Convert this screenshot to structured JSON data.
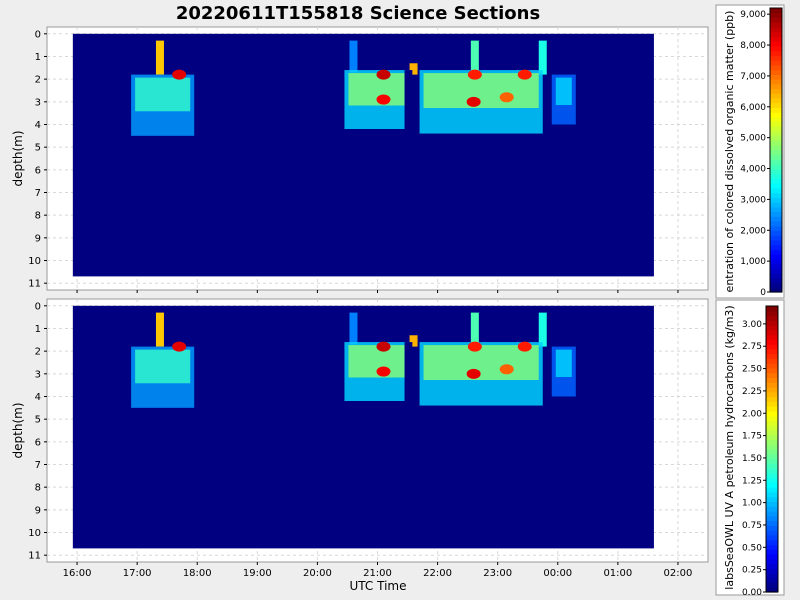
{
  "title": "20220611T155818 Science Sections",
  "xlabel": "UTC Time",
  "chart_data": [
    {
      "type": "heatmap",
      "panel": "top",
      "ylabel": "depth(m)",
      "colorbar_label": "entration of colored dissolved organic matter (ppb)",
      "colorbar_range": [
        0,
        9200
      ],
      "colorbar_ticks": [
        "0",
        "1,000",
        "2,000",
        "3,000",
        "4,000",
        "5,000",
        "6,000",
        "7,000",
        "8,000",
        "9,000"
      ],
      "colorbar_values": [
        0,
        1000,
        2000,
        3000,
        4000,
        5000,
        6000,
        7000,
        8000,
        9000
      ],
      "x_ticks": [
        "16:00",
        "17:00",
        "18:00",
        "19:00",
        "20:00",
        "21:00",
        "22:00",
        "23:00",
        "00:00",
        "01:00",
        "02:00"
      ],
      "y_ticks": [
        "0",
        "1",
        "2",
        "3",
        "4",
        "5",
        "6",
        "7",
        "8",
        "9",
        "10",
        "11"
      ],
      "xlim_hours": [
        15.5,
        26.5
      ],
      "ylim": [
        11.3,
        -0.3
      ],
      "data_extent_hours": [
        15.93,
        25.6
      ],
      "data_extent_depth": [
        0,
        10.7
      ],
      "grid": true,
      "background_value": 0
    },
    {
      "type": "heatmap",
      "panel": "bottom",
      "ylabel": "depth(m)",
      "colorbar_label": "labsSeaOWL UV A petroleum hydrocarbons (kg/m3)",
      "colorbar_range": [
        0,
        3.2
      ],
      "colorbar_ticks": [
        "0.00",
        "0.25",
        "0.50",
        "0.75",
        "1.00",
        "1.25",
        "1.50",
        "1.75",
        "2.00",
        "2.25",
        "2.50",
        "2.75",
        "3.00"
      ],
      "colorbar_values": [
        0,
        0.25,
        0.5,
        0.75,
        1.0,
        1.25,
        1.5,
        1.75,
        2.0,
        2.25,
        2.5,
        2.75,
        3.0
      ],
      "x_ticks": [
        "16:00",
        "17:00",
        "18:00",
        "19:00",
        "20:00",
        "21:00",
        "22:00",
        "23:00",
        "00:00",
        "01:00",
        "02:00"
      ],
      "y_ticks": [
        "0",
        "1",
        "2",
        "3",
        "4",
        "5",
        "6",
        "7",
        "8",
        "9",
        "10",
        "11"
      ],
      "xlim_hours": [
        15.5,
        26.5
      ],
      "ylim": [
        11.3,
        -0.3
      ],
      "data_extent_hours": [
        15.93,
        25.6
      ],
      "data_extent_depth": [
        0,
        10.7
      ],
      "grid": true,
      "background_value": 0
    }
  ],
  "features": [
    {
      "name": "surface-profile-1",
      "t": 17.38,
      "depth": [
        0.3,
        1.8
      ],
      "level": 0.68
    },
    {
      "name": "surface-profile-2",
      "t": 20.6,
      "depth": [
        0.3,
        1.7
      ],
      "level": 0.25
    },
    {
      "name": "surface-profile-3",
      "t": 21.6,
      "depth": [
        1.3,
        1.8
      ],
      "level": 0.7
    },
    {
      "name": "surface-profile-4",
      "t": 22.62,
      "depth": [
        0.3,
        1.8
      ],
      "level": 0.45
    },
    {
      "name": "surface-profile-5",
      "t": 23.75,
      "depth": [
        0.3,
        1.8
      ],
      "level": 0.4
    },
    {
      "name": "patch-1",
      "t": [
        16.9,
        17.95
      ],
      "depth": [
        1.8,
        4.5
      ],
      "level": 0.5
    },
    {
      "name": "patch-2",
      "t": [
        20.45,
        21.55
      ],
      "depth": [
        1.6,
        4.2
      ],
      "level": 0.6
    },
    {
      "name": "patch-3",
      "t": [
        21.7,
        23.75
      ],
      "depth": [
        1.6,
        4.4
      ],
      "level": 0.6
    },
    {
      "name": "patch-4",
      "t": [
        23.9,
        24.3
      ],
      "depth": [
        1.8,
        4.0
      ],
      "level": 0.4
    },
    {
      "name": "hotspot-1",
      "t": 17.7,
      "depth": 1.8,
      "level": 0.9
    },
    {
      "name": "hotspot-2",
      "t": 21.1,
      "depth": 1.8,
      "level": 0.93
    },
    {
      "name": "hotspot-3",
      "t": 21.1,
      "depth": 2.9,
      "level": 0.88
    },
    {
      "name": "hotspot-4",
      "t": 22.6,
      "depth": 3.0,
      "level": 0.9
    },
    {
      "name": "hotspot-5",
      "t": 22.62,
      "depth": 1.8,
      "level": 0.85
    },
    {
      "name": "hotspot-6",
      "t": 23.15,
      "depth": 2.8,
      "level": 0.78
    },
    {
      "name": "hotspot-7",
      "t": 23.45,
      "depth": 1.8,
      "level": 0.85
    },
    {
      "name": "gap",
      "t": [
        21.45,
        21.58
      ],
      "depth": [
        1.6,
        4.5
      ],
      "level": 0.0
    }
  ]
}
